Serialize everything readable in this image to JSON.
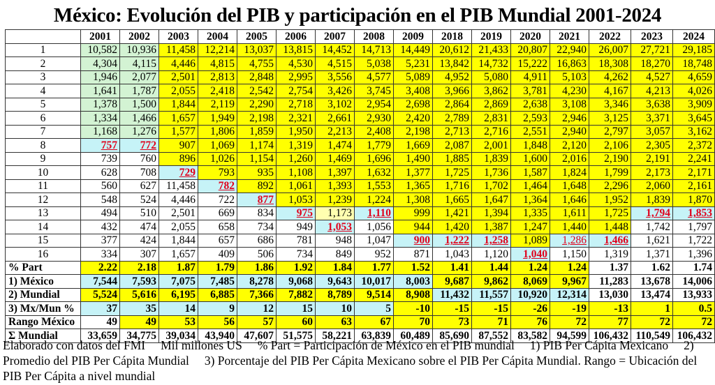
{
  "title": "México: Evolución del PIB y participación en el PIB Mundial 2001-2024",
  "colors": {
    "g": "#d3f3d3",
    "y": "#ffff00",
    "c": "#c6f3f7",
    "w": "#ffffff",
    "ly": "#ffffb0",
    "highlight_text": "#e0001b"
  },
  "years": [
    "2001",
    "2002",
    "2003",
    "2004",
    "2005",
    "2006",
    "2007",
    "2008",
    "2009",
    "2018",
    "2019",
    "2020",
    "2021",
    "2022",
    "2023",
    "2024"
  ],
  "rows": [
    {
      "label": "1",
      "values": [
        "10,582",
        "10,936",
        "11,458",
        "12,214",
        "13,037",
        "13,815",
        "14,452",
        "14,713",
        "14,449",
        "20,612",
        "21,433",
        "20,807",
        "22,940",
        "26,007",
        "27,721",
        "29,185"
      ],
      "bg": [
        "g",
        "g",
        "y",
        "y",
        "y",
        "y",
        "y",
        "y",
        "y",
        "y",
        "y",
        "y",
        "y",
        "y",
        "y",
        "y"
      ],
      "highlight": []
    },
    {
      "label": "2",
      "values": [
        "4,304",
        "4,115",
        "4,446",
        "4,815",
        "4,755",
        "4,530",
        "4,515",
        "5,038",
        "5,231",
        "13,842",
        "14,732",
        "15,222",
        "16,863",
        "18,308",
        "18,270",
        "18,748"
      ],
      "bg": [
        "g",
        "g",
        "y",
        "y",
        "y",
        "y",
        "y",
        "y",
        "y",
        "y",
        "y",
        "y",
        "y",
        "y",
        "y",
        "y"
      ],
      "highlight": []
    },
    {
      "label": "3",
      "values": [
        "1,946",
        "2,077",
        "2,501",
        "2,813",
        "2,848",
        "2,995",
        "3,556",
        "4,577",
        "5,089",
        "4,952",
        "5,080",
        "4,911",
        "5,103",
        "4,262",
        "4,527",
        "4,659"
      ],
      "bg": [
        "g",
        "g",
        "y",
        "y",
        "y",
        "y",
        "y",
        "y",
        "y",
        "y",
        "y",
        "y",
        "y",
        "y",
        "y",
        "y"
      ],
      "highlight": []
    },
    {
      "label": "4",
      "values": [
        "1,641",
        "1,787",
        "2,055",
        "2,418",
        "2,542",
        "2,754",
        "3,426",
        "3,745",
        "3,408",
        "3,966",
        "3,862",
        "3,781",
        "4,230",
        "4,167",
        "4,213",
        "4,026"
      ],
      "bg": [
        "g",
        "g",
        "y",
        "y",
        "y",
        "y",
        "y",
        "y",
        "y",
        "y",
        "y",
        "y",
        "y",
        "y",
        "y",
        "y"
      ],
      "highlight": []
    },
    {
      "label": "5",
      "values": [
        "1,378",
        "1,500",
        "1,844",
        "2,119",
        "2,290",
        "2,718",
        "3,102",
        "2,954",
        "2,698",
        "2,864",
        "2,869",
        "2,638",
        "3,108",
        "3,346",
        "3,638",
        "3,909"
      ],
      "bg": [
        "g",
        "g",
        "y",
        "y",
        "y",
        "y",
        "y",
        "y",
        "y",
        "y",
        "y",
        "y",
        "y",
        "y",
        "y",
        "y"
      ],
      "highlight": []
    },
    {
      "label": "6",
      "values": [
        "1,334",
        "1,466",
        "1,657",
        "1,949",
        "2,198",
        "2,321",
        "2,661",
        "2,930",
        "2,420",
        "2,789",
        "2,831",
        "2,593",
        "2,946",
        "3,125",
        "3,371",
        "3,645"
      ],
      "bg": [
        "g",
        "g",
        "y",
        "y",
        "y",
        "y",
        "y",
        "y",
        "y",
        "y",
        "y",
        "y",
        "y",
        "y",
        "y",
        "y"
      ],
      "highlight": []
    },
    {
      "label": "7",
      "values": [
        "1,168",
        "1,276",
        "1,577",
        "1,806",
        "1,859",
        "1,950",
        "2,213",
        "2,408",
        "2,198",
        "2,713",
        "2,716",
        "2,551",
        "2,940",
        "2,797",
        "3,057",
        "3,162"
      ],
      "bg": [
        "g",
        "g",
        "y",
        "y",
        "y",
        "y",
        "y",
        "y",
        "y",
        "y",
        "y",
        "y",
        "y",
        "y",
        "y",
        "y"
      ],
      "highlight": []
    },
    {
      "label": "8",
      "values": [
        "757",
        "772",
        "907",
        "1,069",
        "1,174",
        "1,319",
        "1,474",
        "1,779",
        "1,669",
        "2,087",
        "2,001",
        "1,848",
        "2,120",
        "2,106",
        "2,305",
        "2,372"
      ],
      "bg": [
        "c",
        "c",
        "y",
        "y",
        "y",
        "y",
        "y",
        "y",
        "y",
        "y",
        "y",
        "y",
        "y",
        "y",
        "y",
        "y"
      ],
      "highlight": [
        0,
        1
      ]
    },
    {
      "label": "9",
      "values": [
        "739",
        "760",
        "896",
        "1,026",
        "1,154",
        "1,260",
        "1,469",
        "1,696",
        "1,490",
        "1,885",
        "1,839",
        "1,600",
        "2,016",
        "2,190",
        "2,191",
        "2,241"
      ],
      "bg": [
        "w",
        "w",
        "y",
        "y",
        "y",
        "y",
        "y",
        "y",
        "y",
        "y",
        "y",
        "y",
        "y",
        "y",
        "y",
        "y"
      ],
      "highlight": []
    },
    {
      "label": "10",
      "values": [
        "628",
        "708",
        "729",
        "793",
        "935",
        "1,108",
        "1,397",
        "1,632",
        "1,377",
        "1,725",
        "1,736",
        "1,587",
        "1,824",
        "1,799",
        "2,173",
        "2,171"
      ],
      "bg": [
        "w",
        "w",
        "c",
        "y",
        "y",
        "y",
        "y",
        "y",
        "y",
        "y",
        "y",
        "y",
        "y",
        "y",
        "y",
        "y"
      ],
      "highlight": [
        2
      ]
    },
    {
      "label": "11",
      "values": [
        "560",
        "627",
        "11,458",
        "782",
        "892",
        "1,061",
        "1,393",
        "1,553",
        "1,365",
        "1,716",
        "1,702",
        "1,464",
        "1,648",
        "2,296",
        "2,060",
        "2,161"
      ],
      "bg": [
        "w",
        "w",
        "w",
        "c",
        "y",
        "y",
        "y",
        "y",
        "y",
        "y",
        "y",
        "y",
        "y",
        "y",
        "y",
        "y"
      ],
      "highlight": [
        3
      ]
    },
    {
      "label": "12",
      "values": [
        "548",
        "524",
        "4,446",
        "722",
        "877",
        "1,053",
        "1,239",
        "1,224",
        "1,308",
        "1,665",
        "1,647",
        "1,364",
        "1,646",
        "1,952",
        "1,839",
        "1,870"
      ],
      "bg": [
        "w",
        "w",
        "w",
        "w",
        "c",
        "y",
        "y",
        "y",
        "y",
        "y",
        "y",
        "y",
        "y",
        "y",
        "y",
        "y"
      ],
      "highlight": [
        4
      ]
    },
    {
      "label": "13",
      "values": [
        "494",
        "510",
        "2,501",
        "669",
        "834",
        "975",
        "1,173",
        "1,110",
        "999",
        "1,421",
        "1,394",
        "1,335",
        "1,611",
        "1,725",
        "1,794",
        "1,853"
      ],
      "bg": [
        "w",
        "w",
        "w",
        "w",
        "w",
        "c",
        "ly",
        "c",
        "y",
        "y",
        "y",
        "y",
        "y",
        "y",
        "c",
        "c"
      ],
      "highlight": [
        5,
        7,
        14,
        15
      ]
    },
    {
      "label": "14",
      "values": [
        "432",
        "474",
        "2,055",
        "658",
        "734",
        "949",
        "1,053",
        "1,056",
        "944",
        "1,420",
        "1,387",
        "1,247",
        "1,440",
        "1,448",
        "1,742",
        "1,797"
      ],
      "bg": [
        "w",
        "w",
        "w",
        "w",
        "w",
        "w",
        "c",
        "w",
        "y",
        "y",
        "y",
        "y",
        "y",
        "y",
        "w",
        "w"
      ],
      "highlight": [
        6
      ]
    },
    {
      "label": "15",
      "values": [
        "377",
        "424",
        "1,844",
        "657",
        "686",
        "781",
        "948",
        "1,047",
        "900",
        "1,222",
        "1,258",
        "1,089",
        "1,286",
        "1,466",
        "1,621",
        "1,722"
      ],
      "bg": [
        "w",
        "w",
        "w",
        "w",
        "w",
        "w",
        "w",
        "w",
        "c",
        "c",
        "c",
        "y",
        "c",
        "c",
        "w",
        "w"
      ],
      "highlight": [
        8,
        9,
        10,
        13
      ],
      "highlight_plain": [
        12
      ]
    },
    {
      "label": "16",
      "values": [
        "334",
        "307",
        "1,657",
        "409",
        "506",
        "734",
        "849",
        "952",
        "871",
        "1,043",
        "1,120",
        "1,040",
        "1,150",
        "1,319",
        "1,371",
        "1,396"
      ],
      "bg": [
        "w",
        "w",
        "w",
        "w",
        "w",
        "w",
        "w",
        "w",
        "w",
        "w",
        "w",
        "c",
        "w",
        "w",
        "w",
        "w"
      ],
      "highlight": [
        11
      ]
    }
  ],
  "summary_rows": [
    {
      "label": "% Part",
      "values": [
        "2.22",
        "2.18",
        "1.87",
        "1.79",
        "1.86",
        "1.92",
        "1.84",
        "1.77",
        "1.52",
        "1.41",
        "1.44",
        "1.24",
        "1.24",
        "1.37",
        "1.62",
        "1.74"
      ],
      "bg": [
        "y",
        "y",
        "y",
        "y",
        "y",
        "y",
        "y",
        "y",
        "y",
        "y",
        "y",
        "y",
        "y",
        "w",
        "w",
        "w"
      ]
    },
    {
      "label": "1)  México",
      "values": [
        "7,544",
        "7,593",
        "7,075",
        "7,485",
        "8,278",
        "9,068",
        "9,643",
        "10,017",
        "8,003",
        "9,687",
        "9,862",
        "8,069",
        "9,967",
        "11,283",
        "13,678",
        "14,006"
      ],
      "bg": [
        "c",
        "c",
        "c",
        "c",
        "c",
        "c",
        "c",
        "c",
        "c",
        "y",
        "y",
        "y",
        "y",
        "w",
        "w",
        "w"
      ]
    },
    {
      "label": "2) Mundial",
      "values": [
        "5,524",
        "5,616",
        "6,195",
        "6,885",
        "7,366",
        "7,882",
        "8,789",
        "9,514",
        "8,908",
        "11,432",
        "11,557",
        "10,920",
        "12,314",
        "13,030",
        "13,474",
        "13,933"
      ],
      "bg": [
        "y",
        "y",
        "y",
        "y",
        "y",
        "y",
        "y",
        "y",
        "y",
        "c",
        "c",
        "c",
        "c",
        "w",
        "w",
        "w"
      ]
    },
    {
      "label": "3) Mx/Mun %",
      "values": [
        "37",
        "35",
        "14",
        "9",
        "12",
        "15",
        "10",
        "5",
        "-10",
        "-15",
        "-15",
        "-26",
        "-19",
        "-13",
        "1",
        "0.5"
      ],
      "bg": [
        "c",
        "c",
        "c",
        "c",
        "c",
        "c",
        "c",
        "c",
        "y",
        "y",
        "y",
        "y",
        "y",
        "y",
        "y",
        "y"
      ]
    },
    {
      "label": "Rango México",
      "values": [
        "49",
        "49",
        "53",
        "56",
        "57",
        "60",
        "63",
        "67",
        "70",
        "73",
        "71",
        "76",
        "72",
        "77",
        "72",
        "72"
      ],
      "bg": [
        "w",
        "y",
        "y",
        "y",
        "y",
        "y",
        "y",
        "y",
        "y",
        "y",
        "y",
        "y",
        "y",
        "y",
        "y",
        "y"
      ]
    },
    {
      "label": "Σ Mundial",
      "values": [
        "33,659",
        "34,775",
        "39,034",
        "43,940",
        "47,607",
        "51,575",
        "58,221",
        "63,839",
        "60,489",
        "85,690",
        "87,552",
        "83,582",
        "94,599",
        "106,432",
        "110,549",
        "106,432"
      ],
      "bg": [
        "w",
        "w",
        "w",
        "w",
        "w",
        "w",
        "w",
        "w",
        "w",
        "w",
        "w",
        "w",
        "w",
        "w",
        "w",
        "w"
      ]
    }
  ],
  "notes": [
    "Elaborado con datos del FMI",
    "Mil millones US",
    "% Part = Participación de México en el PIB mundial",
    "1) PIB Per Cápita Mexicano",
    "2) Promedio del PIB Per Cápita Mundial",
    "3) Porcentaje del PIB Per Cápita Mexicano sobre el PIB Per Cápita Mundial. Rango = Ubicación del PIB Per Cápita a nivel mundial"
  ]
}
